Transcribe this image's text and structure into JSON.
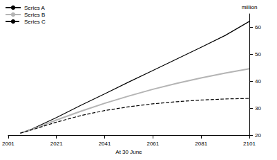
{
  "chart_data": {
    "type": "line",
    "xlabel": "At 30 June",
    "ylabel": "million",
    "x": [
      2006,
      2011,
      2021,
      2031,
      2041,
      2051,
      2061,
      2071,
      2081,
      2091,
      2101
    ],
    "series": [
      {
        "name": "Series A",
        "color": "#000000",
        "line_style": "solid",
        "values": [
          20.7,
          22.3,
          26.5,
          31.0,
          35.3,
          39.7,
          44.0,
          48.3,
          52.6,
          57.0,
          62.2
        ]
      },
      {
        "name": "Series B",
        "color": "#b4b4b4",
        "line_style": "solid",
        "values": [
          20.7,
          22.1,
          25.6,
          28.8,
          31.8,
          34.5,
          37.0,
          39.2,
          41.2,
          43.0,
          44.6
        ]
      },
      {
        "name": "Series C",
        "color": "#000000",
        "line_style": "dashed",
        "values": [
          20.7,
          22.0,
          24.8,
          27.2,
          29.1,
          30.5,
          31.6,
          32.4,
          33.0,
          33.4,
          33.6
        ]
      }
    ],
    "xlim": [
      2001,
      2101
    ],
    "xticks": [
      2001,
      2021,
      2041,
      2061,
      2081,
      2101
    ],
    "ylim": [
      20,
      65
    ],
    "yticks": [
      20,
      30,
      40,
      50,
      60
    ],
    "grid": false,
    "legend": "top-left"
  }
}
